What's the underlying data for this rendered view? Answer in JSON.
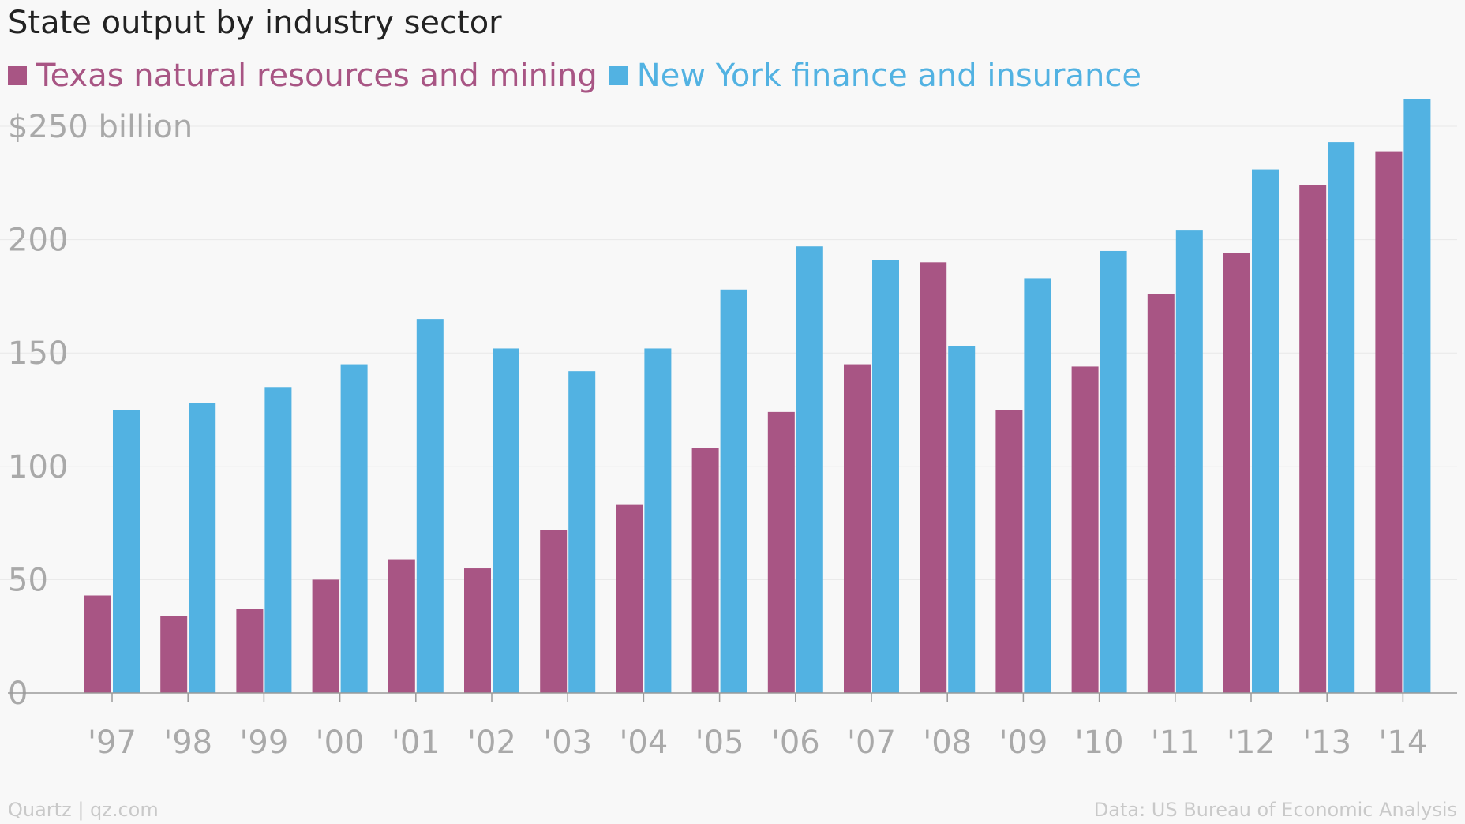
{
  "title": "State output by industry sector",
  "footer": {
    "source_left": "Quartz | qz.com",
    "source_right": "Data: US Bureau of Economic Analysis"
  },
  "colors": {
    "texas": "#a85584",
    "newyork": "#52b2e2",
    "grid": "#e8e8e8",
    "axis": "#9a9a9a"
  },
  "chart_data": {
    "type": "bar",
    "categories": [
      "'97",
      "'98",
      "'99",
      "'00",
      "'01",
      "'02",
      "'03",
      "'04",
      "'05",
      "'06",
      "'07",
      "'08",
      "'09",
      "'10",
      "'11",
      "'12",
      "'13",
      "'14"
    ],
    "series": [
      {
        "name": "Texas natural resources and mining",
        "color": "#a85584",
        "values": [
          43,
          34,
          37,
          50,
          59,
          55,
          72,
          83,
          108,
          124,
          145,
          190,
          125,
          144,
          176,
          194,
          224,
          239
        ]
      },
      {
        "name": "New York finance and insurance",
        "color": "#52b2e2",
        "values": [
          125,
          128,
          135,
          145,
          165,
          152,
          142,
          152,
          178,
          197,
          191,
          153,
          183,
          195,
          204,
          231,
          243,
          262
        ]
      }
    ],
    "ylim": [
      0,
      262
    ],
    "yticks": [
      0,
      50,
      100,
      150,
      200,
      250
    ],
    "ytick_labels": [
      "0",
      "50",
      "100",
      "150",
      "200",
      "$250 billion"
    ],
    "grid": true,
    "legend": "top-left"
  }
}
